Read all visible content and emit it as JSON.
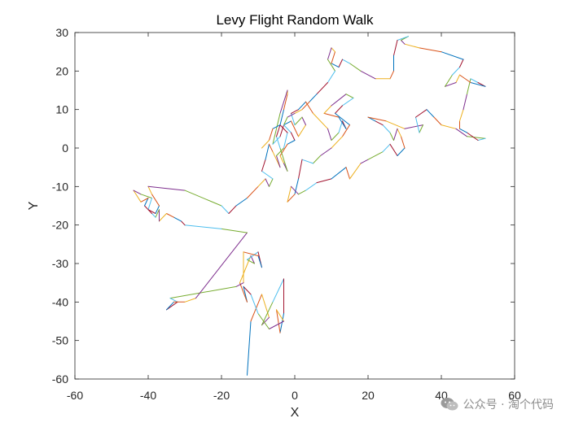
{
  "chart_data": {
    "type": "line",
    "title": "Levy Flight Random Walk",
    "xlabel": "X",
    "ylabel": "Y",
    "xlim": [
      -60,
      60
    ],
    "ylim": [
      -60,
      30
    ],
    "xticks": [
      "-60",
      "-40",
      "-20",
      "0",
      "20",
      "40",
      "60"
    ],
    "yticks": [
      "30",
      "20",
      "10",
      "0",
      "-10",
      "-20",
      "-30",
      "-40",
      "-50",
      "-60"
    ],
    "grid": false,
    "series_colors": [
      "#0072BD",
      "#D95319",
      "#EDB120",
      "#7E2F8E",
      "#77AC30",
      "#4DBEEE",
      "#A2142F"
    ],
    "path": [
      [
        -13,
        -59
      ],
      [
        -12,
        -45
      ],
      [
        -9,
        -38
      ],
      [
        -7,
        -44
      ],
      [
        -9,
        -46
      ],
      [
        -6,
        -40
      ],
      [
        -3,
        -34
      ],
      [
        -3,
        -43
      ],
      [
        -4,
        -48
      ],
      [
        -5,
        -42
      ],
      [
        -3,
        -45
      ],
      [
        -7,
        -47
      ],
      [
        -10,
        -43
      ],
      [
        -12,
        -38
      ],
      [
        -14,
        -36
      ],
      [
        -13,
        -40
      ],
      [
        -15,
        -35
      ],
      [
        -12,
        -28
      ],
      [
        -11,
        -30
      ],
      [
        -13,
        -29
      ],
      [
        -10,
        -27
      ],
      [
        -9,
        -31
      ],
      [
        -10,
        -28
      ],
      [
        -14,
        -27
      ],
      [
        -14,
        -35
      ],
      [
        -16,
        -36
      ],
      [
        -34,
        -39
      ],
      [
        -32,
        -40
      ],
      [
        -35,
        -42
      ],
      [
        -33,
        -40
      ],
      [
        -30,
        -40
      ],
      [
        -27,
        -39
      ],
      [
        -13,
        -22
      ],
      [
        -20,
        -21
      ],
      [
        -30,
        -20
      ],
      [
        -31,
        -19
      ],
      [
        -33,
        -18
      ],
      [
        -35,
        -17
      ],
      [
        -37,
        -19
      ],
      [
        -37,
        -16
      ],
      [
        -38,
        -18
      ],
      [
        -39,
        -17
      ],
      [
        -41,
        -15
      ],
      [
        -40,
        -13
      ],
      [
        -42,
        -14
      ],
      [
        -44,
        -11
      ],
      [
        -42,
        -12
      ],
      [
        -39,
        -13
      ],
      [
        -40,
        -16
      ],
      [
        -38,
        -17
      ],
      [
        -37,
        -15
      ],
      [
        -39,
        -12
      ],
      [
        -40,
        -10
      ],
      [
        -30,
        -11
      ],
      [
        -20,
        -15
      ],
      [
        -18,
        -17
      ],
      [
        -16,
        -15
      ],
      [
        -13,
        -13
      ],
      [
        -10,
        -10
      ],
      [
        -8,
        -8
      ],
      [
        -7,
        -10
      ],
      [
        -6,
        -8
      ],
      [
        -9,
        -6
      ],
      [
        -8,
        -3
      ],
      [
        -7,
        1
      ],
      [
        -6,
        -1
      ],
      [
        -4,
        -5
      ],
      [
        -5,
        -2
      ],
      [
        -3,
        0
      ],
      [
        -2,
        4
      ],
      [
        -4,
        6
      ],
      [
        -3,
        10
      ],
      [
        -2,
        14
      ],
      [
        -2,
        15
      ],
      [
        -4,
        9
      ],
      [
        -6,
        1
      ],
      [
        -4,
        3
      ],
      [
        -3,
        6
      ],
      [
        -1,
        7
      ],
      [
        1,
        3
      ],
      [
        3,
        6
      ],
      [
        2,
        8
      ],
      [
        0,
        6
      ],
      [
        -1,
        9
      ],
      [
        1,
        10
      ],
      [
        3,
        12
      ],
      [
        5,
        9
      ],
      [
        9,
        5
      ],
      [
        10,
        2
      ],
      [
        12,
        4
      ],
      [
        13,
        7
      ],
      [
        14,
        5
      ],
      [
        12,
        8
      ],
      [
        8,
        9
      ],
      [
        10,
        11
      ],
      [
        14,
        14
      ],
      [
        16,
        13
      ],
      [
        13,
        11
      ],
      [
        11,
        9
      ],
      [
        15,
        6
      ],
      [
        13,
        3
      ],
      [
        10,
        0
      ],
      [
        7,
        -2
      ],
      [
        5,
        -4
      ],
      [
        2,
        -3
      ],
      [
        1,
        -8
      ],
      [
        0,
        -12
      ],
      [
        -2,
        -14
      ],
      [
        -1,
        -10
      ],
      [
        1,
        -12
      ],
      [
        3,
        -11
      ],
      [
        6,
        -9
      ],
      [
        10,
        -8
      ],
      [
        14,
        -5
      ],
      [
        15,
        -8
      ],
      [
        18,
        -4
      ],
      [
        20,
        -3
      ],
      [
        24,
        -1
      ],
      [
        26,
        1
      ],
      [
        28,
        -2
      ],
      [
        30,
        0
      ],
      [
        29,
        3
      ],
      [
        28,
        5
      ],
      [
        27,
        2
      ],
      [
        26,
        4
      ],
      [
        24,
        6
      ],
      [
        22,
        7
      ],
      [
        20,
        8
      ],
      [
        25,
        7
      ],
      [
        30,
        5
      ],
      [
        35,
        6
      ],
      [
        34,
        4
      ],
      [
        33,
        8
      ],
      [
        36,
        10
      ],
      [
        38,
        8
      ],
      [
        40,
        6
      ],
      [
        44,
        5
      ],
      [
        47,
        3
      ],
      [
        52,
        2.5
      ],
      [
        50,
        2
      ],
      [
        47,
        4
      ],
      [
        45,
        5
      ],
      [
        45,
        7
      ],
      [
        46,
        10
      ],
      [
        47,
        14
      ],
      [
        48,
        18
      ],
      [
        50,
        17
      ],
      [
        52,
        16
      ],
      [
        48,
        17
      ],
      [
        45,
        19
      ],
      [
        44,
        17
      ],
      [
        41,
        16
      ],
      [
        43,
        19
      ],
      [
        45,
        21
      ],
      [
        46,
        23
      ],
      [
        40,
        25
      ],
      [
        34,
        26
      ],
      [
        30,
        27
      ],
      [
        29,
        28
      ],
      [
        31,
        29
      ],
      [
        28,
        28
      ],
      [
        27,
        24
      ],
      [
        27,
        20
      ],
      [
        26,
        18
      ],
      [
        22,
        18
      ],
      [
        18,
        20
      ],
      [
        15,
        22
      ],
      [
        13,
        23
      ],
      [
        12,
        21
      ],
      [
        10,
        22
      ],
      [
        11,
        25
      ],
      [
        10,
        26
      ],
      [
        9,
        23
      ],
      [
        11,
        20
      ],
      [
        9,
        17
      ],
      [
        6,
        14
      ],
      [
        4,
        12
      ],
      [
        2,
        10
      ],
      [
        0,
        9
      ],
      [
        -2,
        8
      ],
      [
        -3,
        6
      ],
      [
        -1,
        4
      ],
      [
        0,
        2
      ],
      [
        -2,
        1
      ],
      [
        -4,
        -2
      ],
      [
        -3,
        -4
      ],
      [
        -2,
        -6
      ],
      [
        -4,
        0
      ],
      [
        -5,
        3
      ],
      [
        -4,
        6
      ],
      [
        -6,
        5
      ],
      [
        -7,
        2
      ],
      [
        -9,
        0
      ]
    ]
  },
  "watermark": {
    "text": "公众号 · 淘个代码"
  }
}
